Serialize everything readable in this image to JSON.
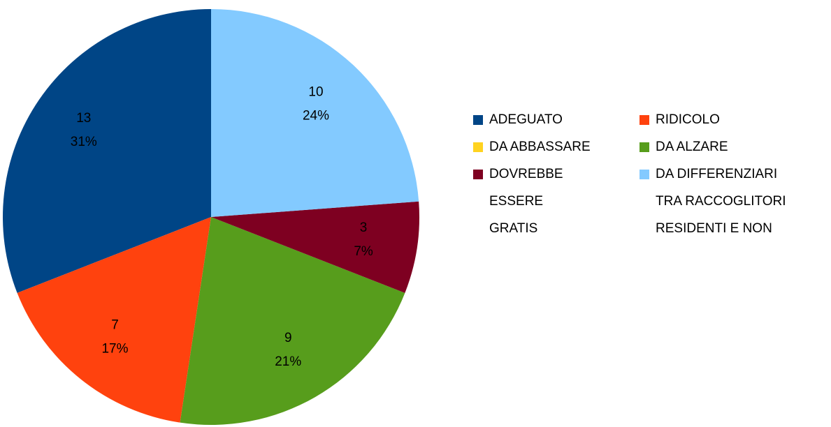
{
  "chart_data": {
    "type": "pie",
    "categories": [
      "ADEGUATO",
      "RIDICOLO",
      "DA ABBASSARE",
      "DA ALZARE",
      "DOVREBBE\nESSERE\nGRATIS",
      "DA DIFFERENZIARI\nTRA RACCOGLITORI\nRESIDENTI E NON"
    ],
    "values": [
      13,
      7,
      0,
      9,
      3,
      10
    ],
    "percentages": [
      31,
      17,
      0,
      21,
      7,
      24
    ],
    "percentage_labels": [
      "31%",
      "17%",
      null,
      "21%",
      "7%",
      "24%"
    ],
    "colors": [
      "#004586",
      "#ff420e",
      "#ffd320",
      "#579d1c",
      "#7e0021",
      "#83caff"
    ],
    "legend": "right"
  }
}
